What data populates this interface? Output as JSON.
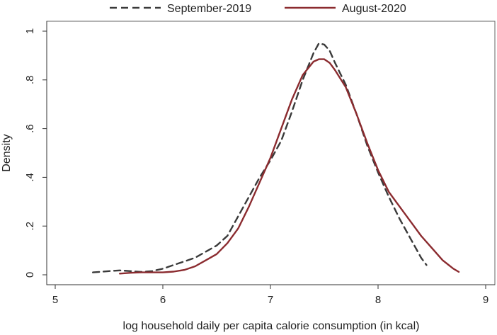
{
  "chart_data": {
    "type": "line",
    "xlabel": "log household daily per capita calorie consumption (in kcal)",
    "ylabel": "Density",
    "xlim": [
      5,
      9
    ],
    "ylim": [
      0,
      1
    ],
    "x_ticks": [
      5,
      6,
      7,
      8,
      9
    ],
    "x_tick_labels": [
      "5",
      "6",
      "7",
      "8",
      "9"
    ],
    "y_ticks": [
      0,
      0.2,
      0.4,
      0.6,
      0.8,
      1
    ],
    "y_tick_labels": [
      "0",
      ".2",
      ".4",
      ".6",
      ".8",
      "1"
    ],
    "grid": false,
    "legend_position": "top",
    "series": [
      {
        "name": "September-2019",
        "color": "#3a3a3a",
        "style": "dashed",
        "points": [
          [
            5.35,
            0.01
          ],
          [
            5.5,
            0.015
          ],
          [
            5.6,
            0.018
          ],
          [
            5.7,
            0.015
          ],
          [
            5.8,
            0.012
          ],
          [
            5.9,
            0.015
          ],
          [
            6.0,
            0.025
          ],
          [
            6.1,
            0.04
          ],
          [
            6.2,
            0.055
          ],
          [
            6.3,
            0.07
          ],
          [
            6.4,
            0.095
          ],
          [
            6.5,
            0.12
          ],
          [
            6.6,
            0.16
          ],
          [
            6.7,
            0.24
          ],
          [
            6.8,
            0.32
          ],
          [
            6.9,
            0.4
          ],
          [
            7.0,
            0.47
          ],
          [
            7.1,
            0.55
          ],
          [
            7.2,
            0.67
          ],
          [
            7.3,
            0.8
          ],
          [
            7.4,
            0.91
          ],
          [
            7.45,
            0.95
          ],
          [
            7.5,
            0.945
          ],
          [
            7.55,
            0.92
          ],
          [
            7.6,
            0.87
          ],
          [
            7.7,
            0.78
          ],
          [
            7.8,
            0.66
          ],
          [
            7.9,
            0.53
          ],
          [
            8.0,
            0.42
          ],
          [
            8.1,
            0.32
          ],
          [
            8.2,
            0.23
          ],
          [
            8.3,
            0.15
          ],
          [
            8.4,
            0.07
          ],
          [
            8.45,
            0.04
          ]
        ]
      },
      {
        "name": "August-2020",
        "color": "#8b2b2f",
        "style": "solid",
        "points": [
          [
            5.6,
            0.005
          ],
          [
            5.7,
            0.008
          ],
          [
            5.8,
            0.01
          ],
          [
            5.9,
            0.01
          ],
          [
            6.0,
            0.01
          ],
          [
            6.1,
            0.013
          ],
          [
            6.2,
            0.02
          ],
          [
            6.3,
            0.035
          ],
          [
            6.4,
            0.06
          ],
          [
            6.5,
            0.085
          ],
          [
            6.6,
            0.13
          ],
          [
            6.7,
            0.19
          ],
          [
            6.8,
            0.28
          ],
          [
            6.9,
            0.38
          ],
          [
            7.0,
            0.48
          ],
          [
            7.1,
            0.6
          ],
          [
            7.2,
            0.72
          ],
          [
            7.3,
            0.82
          ],
          [
            7.4,
            0.875
          ],
          [
            7.45,
            0.885
          ],
          [
            7.5,
            0.885
          ],
          [
            7.55,
            0.87
          ],
          [
            7.6,
            0.84
          ],
          [
            7.7,
            0.77
          ],
          [
            7.8,
            0.66
          ],
          [
            7.9,
            0.54
          ],
          [
            8.0,
            0.43
          ],
          [
            8.1,
            0.34
          ],
          [
            8.2,
            0.28
          ],
          [
            8.3,
            0.22
          ],
          [
            8.4,
            0.16
          ],
          [
            8.5,
            0.11
          ],
          [
            8.6,
            0.06
          ],
          [
            8.7,
            0.025
          ],
          [
            8.75,
            0.012
          ]
        ]
      }
    ]
  }
}
